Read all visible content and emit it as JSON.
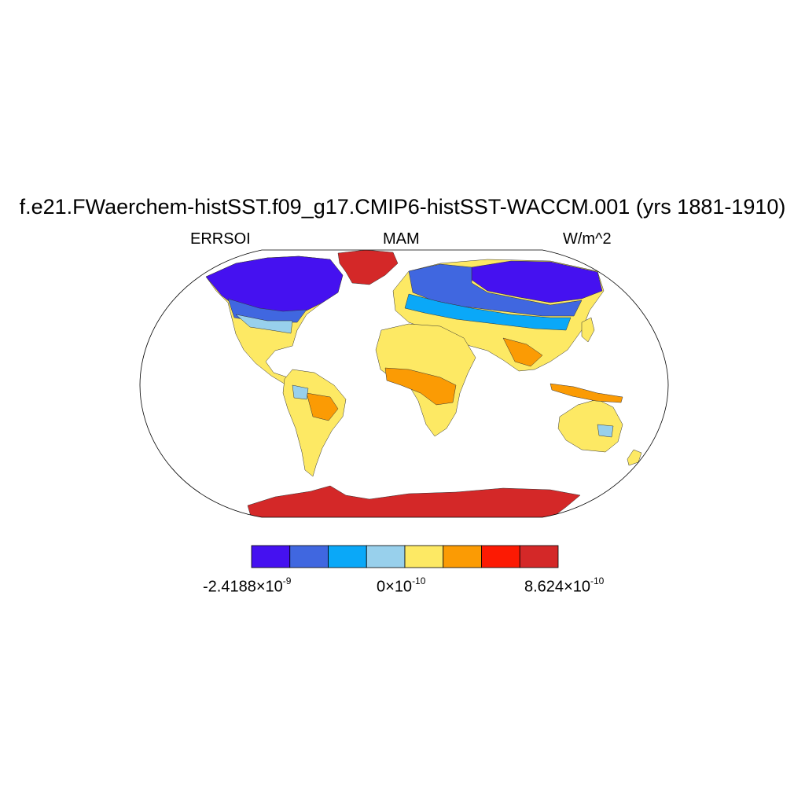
{
  "title": "f.e21.FWaerchem-histSST.f09_g17.CMIP6-histSST-WACCM.001 (yrs 1881-1910)",
  "left_label": "ERRSOI",
  "center_label": "MAM",
  "right_label": "W/m^2",
  "colors": {
    "ocean": "#ffffff",
    "c1": "#4511f0",
    "c2": "#4067e0",
    "c3": "#0aa8f8",
    "c4": "#98d0ec",
    "c5": "#fde964",
    "c6": "#fb9b04",
    "c7": "#fc1a03",
    "c8": "#d42828"
  },
  "colorbar": {
    "colors": [
      "#4511f0",
      "#4067e0",
      "#0aa8f8",
      "#98d0ec",
      "#fde964",
      "#fb9b04",
      "#fc1a03",
      "#d42828"
    ],
    "min_label": {
      "mantissa": "-2.4188",
      "times": "×",
      "base": "10",
      "exp": "-9"
    },
    "mid_label": {
      "mantissa": "0",
      "times": "×",
      "base": "10",
      "exp": "-10"
    },
    "max_label": {
      "mantissa": "8.624",
      "times": "×",
      "base": "10",
      "exp": "-10"
    }
  }
}
